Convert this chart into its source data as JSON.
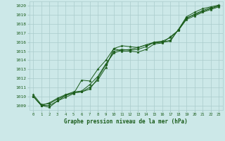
{
  "xlabel": "Graphe pression niveau de la mer (hPa)",
  "ylabel": "",
  "xlim": [
    -0.5,
    23.5
  ],
  "ylim": [
    1008.5,
    1020.5
  ],
  "yticks": [
    1009,
    1010,
    1011,
    1012,
    1013,
    1014,
    1015,
    1016,
    1017,
    1018,
    1019,
    1020
  ],
  "xticks": [
    0,
    1,
    2,
    3,
    4,
    5,
    6,
    7,
    8,
    9,
    10,
    11,
    12,
    13,
    14,
    15,
    16,
    17,
    18,
    19,
    20,
    21,
    22,
    23
  ],
  "bg_color": "#cce8e8",
  "grid_color": "#aacccc",
  "line_color": "#1a5c1a",
  "label_color": "#1a5c1a",
  "series": [
    [
      1010.0,
      1009.0,
      1008.8,
      1009.5,
      1010.1,
      1010.4,
      1010.5,
      1011.0,
      1011.8,
      1013.2,
      1015.3,
      1015.6,
      1015.5,
      1015.4,
      1015.7,
      1015.9,
      1016.0,
      1016.1,
      1017.4,
      1018.8,
      1019.3,
      1019.7,
      1019.9,
      1020.1
    ],
    [
      1010.0,
      1009.0,
      1009.3,
      1009.8,
      1010.2,
      1010.5,
      1010.6,
      1011.3,
      1012.2,
      1013.6,
      1014.8,
      1015.1,
      1015.2,
      1015.4,
      1015.7,
      1016.0,
      1016.1,
      1016.5,
      1017.3,
      1018.5,
      1018.9,
      1019.3,
      1019.6,
      1019.9
    ],
    [
      1010.0,
      1009.0,
      1009.0,
      1009.5,
      1009.9,
      1010.3,
      1011.8,
      1011.7,
      1013.0,
      1014.0,
      1015.3,
      1015.0,
      1015.0,
      1014.9,
      1015.2,
      1015.8,
      1015.9,
      1016.6,
      1017.3,
      1018.7,
      1019.0,
      1019.4,
      1019.7,
      1020.0
    ],
    [
      1010.2,
      1009.1,
      1009.2,
      1009.7,
      1010.1,
      1010.4,
      1010.5,
      1010.8,
      1012.0,
      1013.5,
      1015.0,
      1015.2,
      1015.1,
      1015.2,
      1015.5,
      1016.0,
      1016.0,
      1016.2,
      1017.4,
      1018.6,
      1019.1,
      1019.5,
      1019.8,
      1020.0
    ]
  ]
}
